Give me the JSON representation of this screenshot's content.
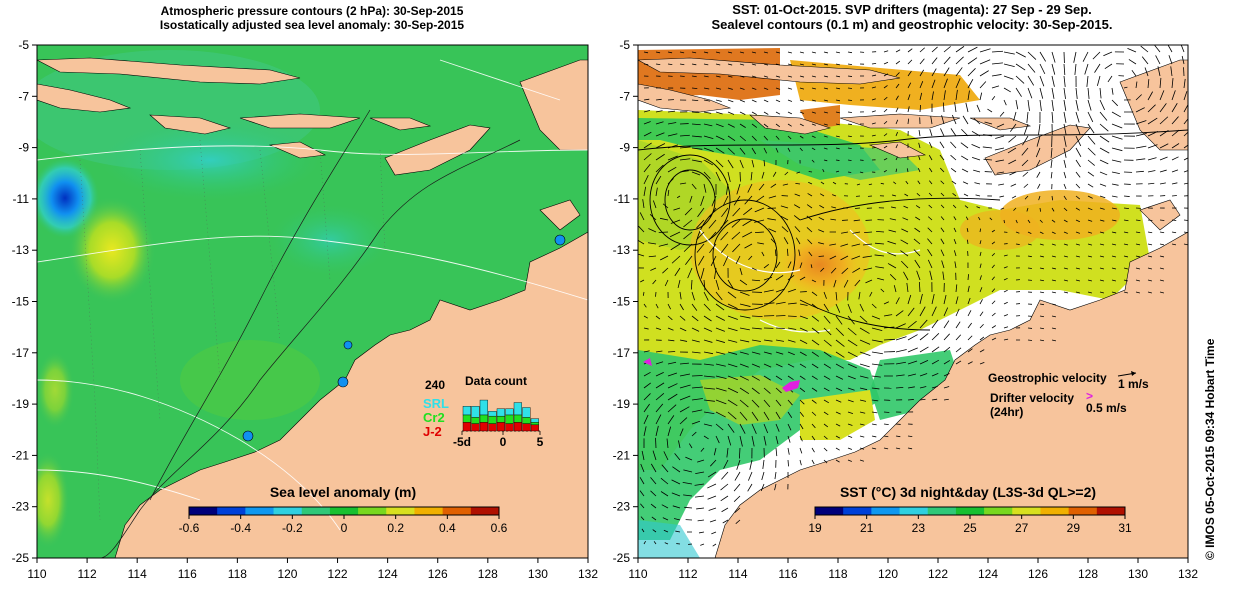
{
  "left_panel": {
    "title_line1": "Atmospheric pressure contours (2 hPa): 30-Sep-2015",
    "title_line2": "Isostatically adjusted sea level anomaly: 30-Sep-2015",
    "y_ticks": [
      "-5",
      "-7",
      "-9",
      "-11",
      "-13",
      "-15",
      "-17",
      "-19",
      "-21",
      "-23",
      "-25"
    ],
    "x_ticks": [
      "110",
      "112",
      "114",
      "116",
      "118",
      "120",
      "122",
      "124",
      "126",
      "128",
      "130",
      "132"
    ],
    "colorbar": {
      "title": "Sea level anomaly (m)",
      "ticks": [
        "-0.6",
        "-0.4",
        "-0.2",
        "0",
        "0.2",
        "0.4",
        "0.6"
      ],
      "colors": [
        "#00007a",
        "#0040d8",
        "#1098f0",
        "#30d0e0",
        "#30c878",
        "#18c030",
        "#78d820",
        "#d8e020",
        "#f0b000",
        "#e06000",
        "#b01000"
      ]
    },
    "data_count": {
      "max_label": "240",
      "title": "Data count",
      "legend": [
        {
          "label": "SRL",
          "color": "#30e0e8"
        },
        {
          "label": "Cr2",
          "color": "#20e020"
        },
        {
          "label": "J-2",
          "color": "#e00000"
        }
      ],
      "axis_labels": [
        "-5d",
        "0",
        "5"
      ],
      "bars": [
        {
          "SRL": 0.35,
          "Cr2": 0.3,
          "J2": 0.35
        },
        {
          "SRL": 0.45,
          "Cr2": 0.25,
          "J2": 0.3
        },
        {
          "SRL": 0.6,
          "Cr2": 0.3,
          "J2": 0.35
        },
        {
          "SRL": 0.2,
          "Cr2": 0.3,
          "J2": 0.3
        },
        {
          "SRL": 0.3,
          "Cr2": 0.25,
          "J2": 0.35
        },
        {
          "SRL": 0.25,
          "Cr2": 0.35,
          "J2": 0.3
        },
        {
          "SRL": 0.5,
          "Cr2": 0.3,
          "J2": 0.35
        },
        {
          "SRL": 0.4,
          "Cr2": 0.25,
          "J2": 0.3
        },
        {
          "SRL": 0.15,
          "Cr2": 0.1,
          "J2": 0.25
        }
      ]
    }
  },
  "right_panel": {
    "title_line1": "SST: 01-Oct-2015. SVP drifters (magenta): 27 Sep - 29 Sep.",
    "title_line2": "Sealevel contours (0.1 m) and geostrophic velocity: 30-Sep-2015.",
    "y_ticks": [
      "-5",
      "-7",
      "-9",
      "-11",
      "-13",
      "-15",
      "-17",
      "-19",
      "-21",
      "-23",
      "-25"
    ],
    "x_ticks": [
      "110",
      "112",
      "114",
      "116",
      "118",
      "120",
      "122",
      "124",
      "126",
      "128",
      "130",
      "132"
    ],
    "legend": {
      "geostrophic_label": "Geostrophic velocity",
      "geostrophic_scale": "1 m/s",
      "drifter_label": "Drifter velocity",
      "drifter_sub": "(24hr)",
      "drifter_scale": "0.5 m/s"
    },
    "colorbar": {
      "title": "SST (°C) 3d night&day (L3S-3d QL>=2)",
      "ticks": [
        "19",
        "21",
        "23",
        "25",
        "27",
        "29",
        "31"
      ],
      "colors": [
        "#00007a",
        "#0040d8",
        "#1098f0",
        "#30d0e0",
        "#30c878",
        "#18c030",
        "#78d820",
        "#d8e020",
        "#f0b000",
        "#e06000",
        "#b01000"
      ]
    }
  },
  "credit": "© IMOS 05-Oct-2015 09:34 Hobart Time"
}
